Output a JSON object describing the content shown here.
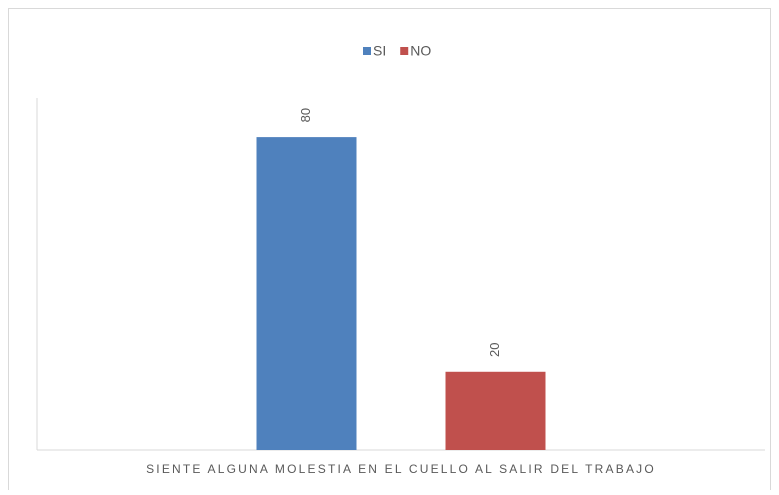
{
  "chart_data": {
    "type": "bar",
    "categories": [
      "SIENTE ALGUNA MOLESTIA EN EL CUELLO AL SALIR DEL TRABAJO"
    ],
    "series": [
      {
        "name": "SI",
        "color": "#4f81bd",
        "values": [
          80
        ]
      },
      {
        "name": "NO",
        "color": "#c0504d",
        "values": [
          20
        ]
      }
    ],
    "ylim": [
      0,
      90
    ],
    "legend": "top",
    "data_labels": true
  }
}
